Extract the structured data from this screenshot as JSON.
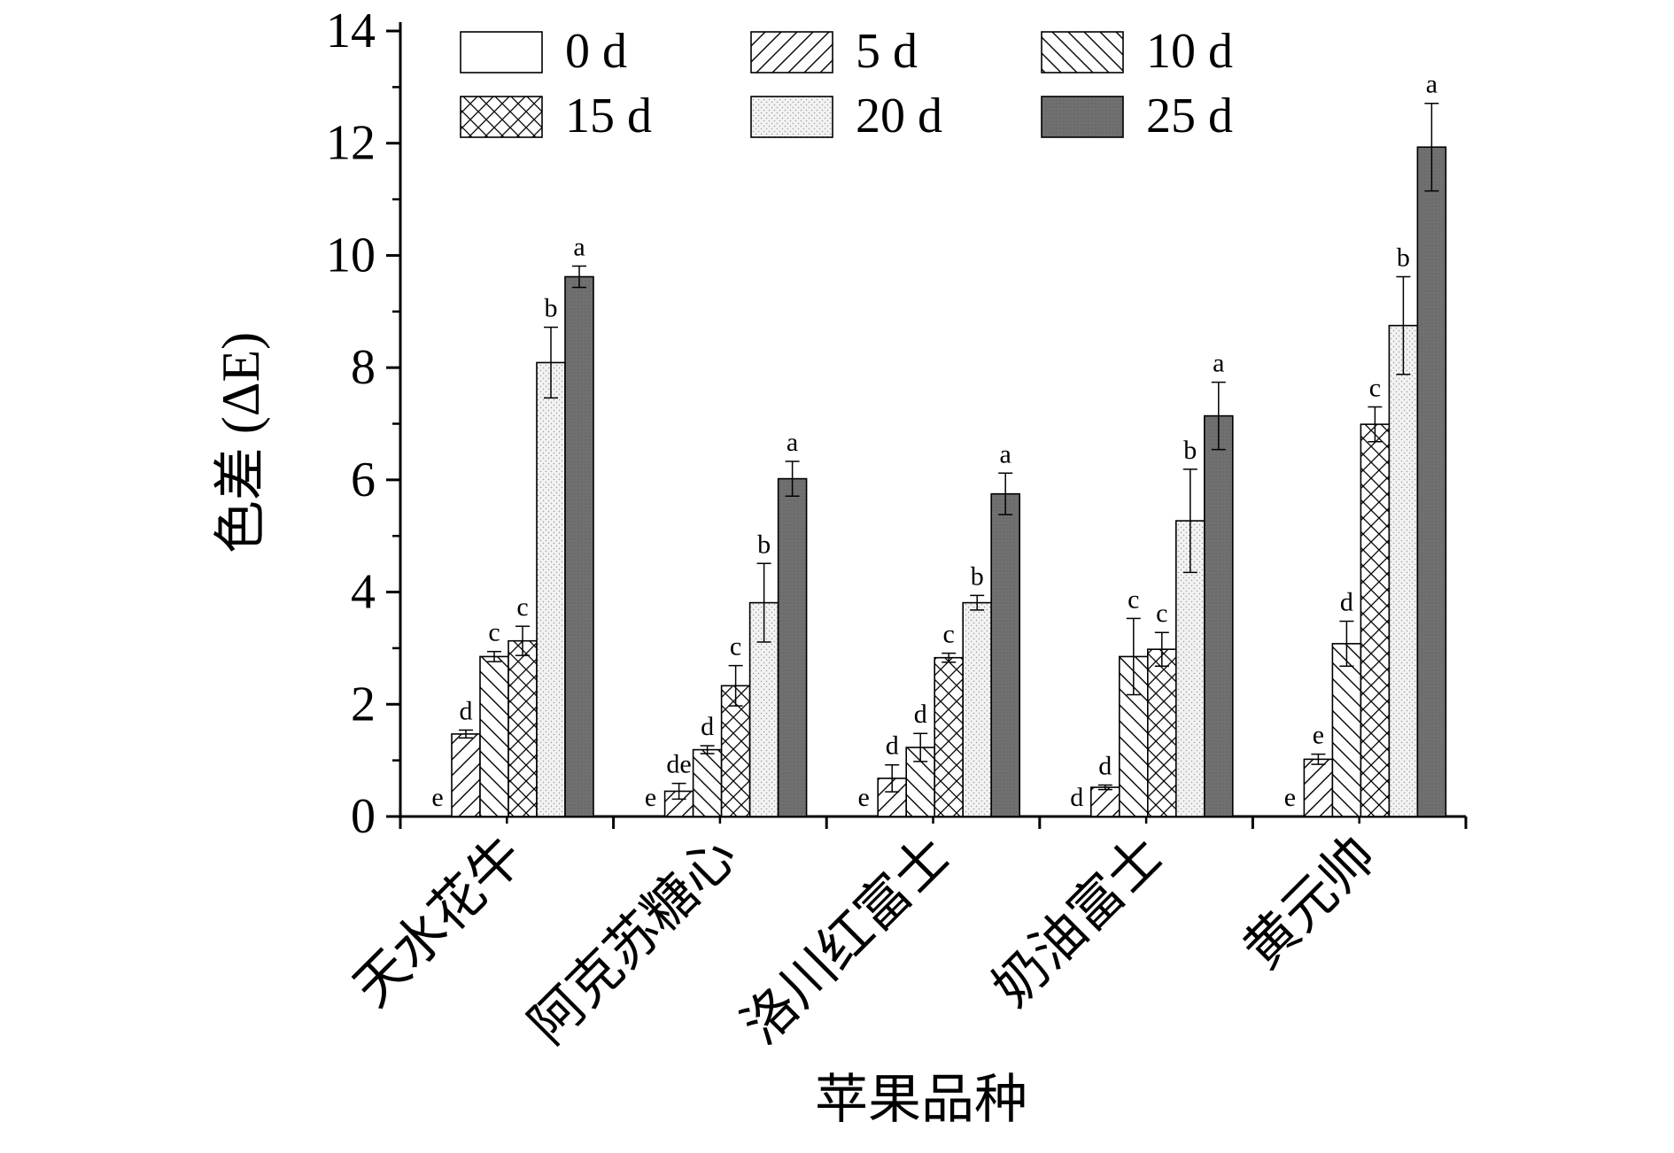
{
  "chart_data": {
    "type": "bar",
    "xlabel": "苹果品种",
    "ylabel": "色差 (ΔE)",
    "ylim": [
      0,
      14
    ],
    "yticks": [
      "0",
      "2",
      "4",
      "6",
      "8",
      "10",
      "12",
      "14"
    ],
    "categories": [
      "天水花牛",
      "阿克苏糖心",
      "洛川红富士",
      "奶油富士",
      "黄元帅"
    ],
    "legend_position": "top",
    "series": [
      {
        "name": "0 d",
        "pattern": "blank",
        "values": [
          0,
          0,
          0,
          0,
          0
        ],
        "errors": [
          0,
          0,
          0,
          0,
          0
        ],
        "labels": [
          "e",
          "e",
          "e",
          "d",
          "e"
        ]
      },
      {
        "name": "5 d",
        "pattern": "slash",
        "values": [
          1.47,
          0.45,
          0.68,
          0.52,
          1.02
        ],
        "errors": [
          0.07,
          0.14,
          0.24,
          0.04,
          0.09
        ],
        "labels": [
          "d",
          "de",
          "d",
          "d",
          "e"
        ]
      },
      {
        "name": "10 d",
        "pattern": "backslash",
        "values": [
          2.85,
          1.19,
          1.23,
          2.85,
          3.08
        ],
        "errors": [
          0.09,
          0.07,
          0.25,
          0.68,
          0.4
        ],
        "labels": [
          "c",
          "d",
          "d",
          "c",
          "d"
        ]
      },
      {
        "name": "15 d",
        "pattern": "cross",
        "values": [
          3.13,
          2.33,
          2.83,
          2.98,
          6.99
        ],
        "errors": [
          0.26,
          0.36,
          0.08,
          0.3,
          0.31
        ],
        "labels": [
          "c",
          "c",
          "c",
          "c",
          "c"
        ]
      },
      {
        "name": "20 d",
        "pattern": "dots",
        "values": [
          8.09,
          3.81,
          3.81,
          5.27,
          8.75
        ],
        "errors": [
          0.63,
          0.7,
          0.13,
          0.92,
          0.87
        ],
        "labels": [
          "b",
          "b",
          "b",
          "b",
          "b"
        ]
      },
      {
        "name": "25 d",
        "pattern": "solid",
        "values": [
          9.62,
          6.02,
          5.75,
          7.14,
          11.93
        ],
        "errors": [
          0.19,
          0.31,
          0.37,
          0.6,
          0.78
        ],
        "labels": [
          "a",
          "a",
          "a",
          "a",
          "a"
        ]
      }
    ],
    "colors": {
      "axis": "#000000",
      "bar_edge": "#000000",
      "solid_fill": "#707070",
      "dots_fill": "#f2f2f2"
    }
  }
}
